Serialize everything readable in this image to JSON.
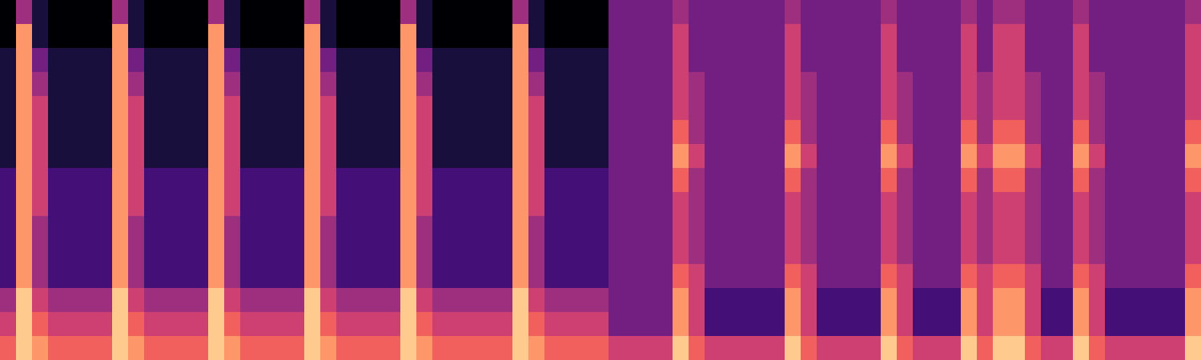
{
  "chart_data": {
    "type": "heatmap",
    "color": "magma",
    "zlim": [
      0,
      9
    ],
    "tick_labels": false,
    "values": [
      [
        0,
        4,
        1,
        0,
        0,
        0,
        0,
        4,
        1,
        0,
        0,
        0,
        0,
        4,
        1,
        0,
        0,
        0,
        0,
        4,
        1,
        0,
        0,
        0,
        0,
        4,
        1,
        0,
        0,
        0,
        0,
        0,
        4,
        1,
        0,
        0,
        0,
        0,
        3,
        3,
        3,
        3,
        4,
        3,
        3,
        3,
        3,
        3,
        3,
        4,
        3,
        3,
        3,
        3,
        3,
        4,
        3,
        3,
        3,
        3,
        4,
        3,
        4,
        4,
        3,
        3,
        3,
        4,
        3,
        3,
        3,
        3,
        3,
        3,
        4
      ],
      [
        0,
        7,
        1,
        0,
        0,
        0,
        0,
        7,
        1,
        0,
        0,
        0,
        0,
        7,
        1,
        0,
        0,
        0,
        0,
        7,
        1,
        0,
        0,
        0,
        0,
        7,
        1,
        0,
        0,
        0,
        0,
        0,
        7,
        1,
        0,
        0,
        0,
        0,
        3,
        3,
        3,
        3,
        5,
        3,
        3,
        3,
        3,
        3,
        3,
        5,
        3,
        3,
        3,
        3,
        3,
        5,
        3,
        3,
        3,
        3,
        5,
        3,
        5,
        5,
        3,
        3,
        3,
        5,
        3,
        3,
        3,
        3,
        3,
        3,
        5
      ],
      [
        1,
        7,
        3,
        1,
        1,
        1,
        1,
        7,
        3,
        1,
        1,
        1,
        1,
        7,
        3,
        1,
        1,
        1,
        1,
        7,
        3,
        1,
        1,
        1,
        1,
        7,
        3,
        1,
        1,
        1,
        1,
        1,
        7,
        3,
        1,
        1,
        1,
        1,
        3,
        3,
        3,
        3,
        5,
        3,
        3,
        3,
        3,
        3,
        3,
        5,
        3,
        3,
        3,
        3,
        3,
        5,
        3,
        3,
        3,
        3,
        5,
        3,
        5,
        5,
        3,
        3,
        3,
        5,
        3,
        3,
        3,
        3,
        3,
        3,
        5
      ],
      [
        1,
        7,
        4,
        1,
        1,
        1,
        1,
        7,
        4,
        1,
        1,
        1,
        1,
        7,
        4,
        1,
        1,
        1,
        1,
        7,
        4,
        1,
        1,
        1,
        1,
        7,
        4,
        1,
        1,
        1,
        1,
        1,
        7,
        4,
        1,
        1,
        1,
        1,
        3,
        3,
        3,
        3,
        5,
        4,
        3,
        3,
        3,
        3,
        3,
        5,
        4,
        3,
        3,
        3,
        3,
        5,
        4,
        3,
        3,
        3,
        5,
        4,
        5,
        5,
        4,
        3,
        3,
        5,
        4,
        3,
        3,
        3,
        3,
        3,
        5
      ],
      [
        1,
        7,
        5,
        1,
        1,
        1,
        1,
        7,
        5,
        1,
        1,
        1,
        1,
        7,
        5,
        1,
        1,
        1,
        1,
        7,
        5,
        1,
        1,
        1,
        1,
        7,
        5,
        1,
        1,
        1,
        1,
        1,
        7,
        5,
        1,
        1,
        1,
        1,
        3,
        3,
        3,
        3,
        5,
        4,
        3,
        3,
        3,
        3,
        3,
        5,
        4,
        3,
        3,
        3,
        3,
        5,
        4,
        3,
        3,
        3,
        5,
        4,
        5,
        5,
        4,
        3,
        3,
        5,
        4,
        3,
        3,
        3,
        3,
        3,
        5
      ],
      [
        1,
        7,
        5,
        1,
        1,
        1,
        1,
        7,
        5,
        1,
        1,
        1,
        1,
        7,
        5,
        1,
        1,
        1,
        1,
        7,
        5,
        1,
        1,
        1,
        1,
        7,
        5,
        1,
        1,
        1,
        1,
        1,
        7,
        5,
        1,
        1,
        1,
        1,
        3,
        3,
        3,
        3,
        6,
        4,
        3,
        3,
        3,
        3,
        3,
        6,
        4,
        3,
        3,
        3,
        3,
        6,
        4,
        3,
        3,
        3,
        6,
        4,
        6,
        6,
        4,
        3,
        3,
        6,
        4,
        3,
        3,
        3,
        3,
        3,
        6
      ],
      [
        1,
        7,
        5,
        1,
        1,
        1,
        1,
        7,
        5,
        1,
        1,
        1,
        1,
        7,
        5,
        1,
        1,
        1,
        1,
        7,
        5,
        1,
        1,
        1,
        1,
        7,
        5,
        1,
        1,
        1,
        1,
        1,
        7,
        5,
        1,
        1,
        1,
        1,
        3,
        3,
        3,
        3,
        7,
        5,
        3,
        3,
        3,
        3,
        3,
        7,
        5,
        3,
        3,
        3,
        3,
        7,
        5,
        3,
        3,
        3,
        7,
        5,
        7,
        7,
        5,
        3,
        3,
        7,
        5,
        3,
        3,
        3,
        3,
        3,
        7
      ],
      [
        2,
        7,
        5,
        2,
        2,
        2,
        2,
        7,
        5,
        2,
        2,
        2,
        2,
        7,
        5,
        2,
        2,
        2,
        2,
        7,
        5,
        2,
        2,
        2,
        2,
        7,
        5,
        2,
        2,
        2,
        2,
        2,
        7,
        5,
        2,
        2,
        2,
        2,
        3,
        3,
        3,
        3,
        6,
        4,
        3,
        3,
        3,
        3,
        3,
        6,
        4,
        3,
        3,
        3,
        3,
        6,
        4,
        3,
        3,
        3,
        6,
        4,
        6,
        6,
        4,
        3,
        3,
        6,
        4,
        3,
        3,
        3,
        3,
        3,
        6
      ],
      [
        2,
        7,
        5,
        2,
        2,
        2,
        2,
        7,
        5,
        2,
        2,
        2,
        2,
        7,
        5,
        2,
        2,
        2,
        2,
        7,
        5,
        2,
        2,
        2,
        2,
        7,
        5,
        2,
        2,
        2,
        2,
        2,
        7,
        5,
        2,
        2,
        2,
        2,
        3,
        3,
        3,
        3,
        5,
        4,
        3,
        3,
        3,
        3,
        3,
        5,
        4,
        3,
        3,
        3,
        3,
        5,
        4,
        3,
        3,
        3,
        5,
        4,
        5,
        5,
        4,
        3,
        3,
        5,
        4,
        3,
        3,
        3,
        3,
        3,
        5
      ],
      [
        2,
        7,
        4,
        2,
        2,
        2,
        2,
        7,
        4,
        2,
        2,
        2,
        2,
        7,
        4,
        2,
        2,
        2,
        2,
        7,
        4,
        2,
        2,
        2,
        2,
        7,
        4,
        2,
        2,
        2,
        2,
        2,
        7,
        4,
        2,
        2,
        2,
        2,
        3,
        3,
        3,
        3,
        5,
        4,
        3,
        3,
        3,
        3,
        3,
        5,
        4,
        3,
        3,
        3,
        3,
        5,
        4,
        3,
        3,
        3,
        5,
        4,
        5,
        5,
        4,
        3,
        3,
        5,
        4,
        3,
        3,
        3,
        3,
        3,
        5
      ],
      [
        2,
        7,
        4,
        2,
        2,
        2,
        2,
        7,
        4,
        2,
        2,
        2,
        2,
        7,
        4,
        2,
        2,
        2,
        2,
        7,
        4,
        2,
        2,
        2,
        2,
        7,
        4,
        2,
        2,
        2,
        2,
        2,
        7,
        4,
        2,
        2,
        2,
        2,
        3,
        3,
        3,
        3,
        5,
        4,
        3,
        3,
        3,
        3,
        3,
        5,
        4,
        3,
        3,
        3,
        3,
        5,
        4,
        3,
        3,
        3,
        5,
        4,
        5,
        5,
        4,
        3,
        3,
        5,
        4,
        3,
        3,
        3,
        3,
        3,
        5
      ],
      [
        2,
        7,
        4,
        2,
        2,
        2,
        2,
        7,
        4,
        2,
        2,
        2,
        2,
        7,
        4,
        2,
        2,
        2,
        2,
        7,
        4,
        2,
        2,
        2,
        2,
        7,
        4,
        2,
        2,
        2,
        2,
        2,
        7,
        4,
        2,
        2,
        2,
        2,
        3,
        3,
        3,
        3,
        6,
        5,
        3,
        3,
        3,
        3,
        3,
        6,
        5,
        3,
        3,
        3,
        3,
        6,
        5,
        3,
        3,
        3,
        6,
        5,
        6,
        6,
        5,
        3,
        3,
        6,
        5,
        3,
        3,
        3,
        3,
        3,
        6
      ],
      [
        4,
        8,
        5,
        4,
        4,
        4,
        4,
        8,
        5,
        4,
        4,
        4,
        4,
        8,
        5,
        4,
        4,
        4,
        4,
        8,
        5,
        4,
        4,
        4,
        4,
        8,
        5,
        4,
        4,
        4,
        4,
        4,
        8,
        5,
        4,
        4,
        4,
        4,
        3,
        3,
        3,
        3,
        7,
        5,
        2,
        2,
        2,
        2,
        2,
        7,
        5,
        2,
        2,
        2,
        2,
        7,
        5,
        2,
        2,
        2,
        7,
        5,
        7,
        7,
        5,
        2,
        2,
        7,
        5,
        2,
        2,
        2,
        2,
        2,
        7
      ],
      [
        5,
        8,
        6,
        5,
        5,
        5,
        5,
        8,
        6,
        5,
        5,
        5,
        5,
        8,
        6,
        5,
        5,
        5,
        5,
        8,
        6,
        5,
        5,
        5,
        5,
        8,
        6,
        5,
        5,
        5,
        5,
        5,
        8,
        6,
        5,
        5,
        5,
        5,
        3,
        3,
        3,
        3,
        7,
        5,
        2,
        2,
        2,
        2,
        2,
        7,
        5,
        2,
        2,
        2,
        2,
        7,
        5,
        2,
        2,
        2,
        7,
        5,
        7,
        7,
        5,
        2,
        2,
        7,
        5,
        2,
        2,
        2,
        2,
        2,
        7
      ],
      [
        6,
        8,
        7,
        6,
        6,
        6,
        6,
        8,
        7,
        6,
        6,
        6,
        6,
        8,
        7,
        6,
        6,
        6,
        6,
        8,
        7,
        6,
        6,
        6,
        6,
        8,
        7,
        6,
        6,
        6,
        6,
        6,
        8,
        7,
        6,
        6,
        6,
        6,
        5,
        5,
        5,
        5,
        8,
        6,
        5,
        5,
        5,
        5,
        5,
        8,
        6,
        5,
        5,
        5,
        5,
        8,
        6,
        5,
        5,
        5,
        8,
        6,
        8,
        8,
        6,
        5,
        5,
        8,
        6,
        5,
        5,
        5,
        5,
        5,
        8
      ]
    ]
  }
}
